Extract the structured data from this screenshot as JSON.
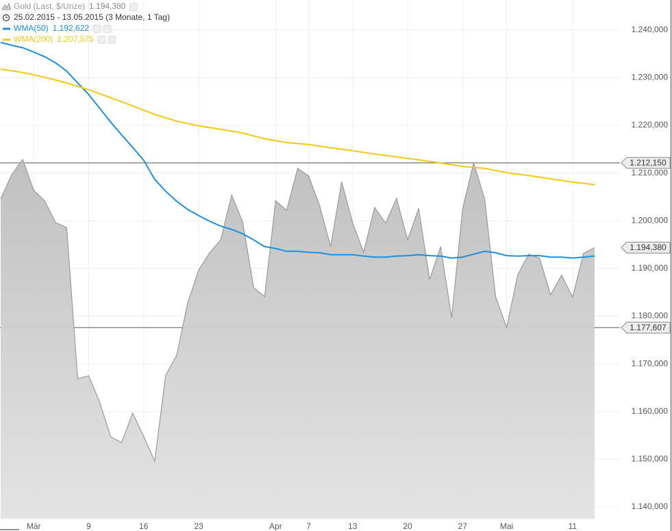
{
  "chart_data": {
    "type": "line",
    "subtitle": "25.02.2015 - 13.05.2015 (3 Monate, 1 Tag)",
    "categories": [
      null,
      null,
      null,
      "Mär",
      null,
      null,
      null,
      null,
      "9",
      null,
      null,
      null,
      null,
      "16",
      null,
      null,
      null,
      null,
      "23",
      null,
      null,
      null,
      null,
      null,
      null,
      "Apr",
      null,
      null,
      "7",
      null,
      null,
      null,
      "13",
      null,
      null,
      null,
      null,
      "20",
      null,
      null,
      null,
      null,
      "27",
      null,
      null,
      null,
      "Mai",
      null,
      null,
      null,
      null,
      null,
      "11",
      null,
      null
    ],
    "series": [
      {
        "name": "Gold (Last, $/Unze)",
        "type": "area",
        "color": "#9a9a9a",
        "values": [
          1204600,
          1209700,
          1212850,
          1206400,
          1204200,
          1199600,
          1198600,
          1166900,
          1167500,
          1162000,
          1154700,
          1153500,
          1159700,
          1154800,
          1149600,
          1167600,
          1171800,
          1182700,
          1189700,
          1193300,
          1196000,
          1205400,
          1199800,
          1186000,
          1184100,
          1204200,
          1202200,
          1211000,
          1209400,
          1203200,
          1194600,
          1208200,
          1199600,
          1193400,
          1202800,
          1199500,
          1204700,
          1196000,
          1202600,
          1187700,
          1194600,
          1179700,
          1202500,
          1212150,
          1204700,
          1184100,
          1177607,
          1188600,
          1193000,
          1192200,
          1184500,
          1188600,
          1184000,
          1193200,
          1194380
        ],
        "value_labels": [
          null,
          null,
          null,
          null,
          null,
          null,
          null,
          null,
          null,
          null,
          null,
          null,
          null,
          null,
          null,
          null,
          null,
          null,
          null,
          null,
          null,
          null,
          null,
          null,
          null,
          null,
          null,
          null,
          null,
          null,
          null,
          null,
          null,
          null,
          null,
          null,
          null,
          null,
          null,
          null,
          null,
          null,
          null,
          null,
          null,
          null,
          null,
          null,
          null,
          null,
          null,
          null,
          null,
          null,
          "1.194,380"
        ]
      },
      {
        "name": "WMA(50)",
        "type": "line",
        "color": "#1b8fe0",
        "values": [
          1237400,
          1236800,
          1236300,
          1235400,
          1234400,
          1233100,
          1231400,
          1228900,
          1226500,
          1223600,
          1220700,
          1218000,
          1215400,
          1212700,
          1208700,
          1206200,
          1204100,
          1202400,
          1201100,
          1199900,
          1198900,
          1198200,
          1197300,
          1196000,
          1194600,
          1194200,
          1193600,
          1193600,
          1193400,
          1193300,
          1192900,
          1192900,
          1192900,
          1192600,
          1192400,
          1192400,
          1192600,
          1192700,
          1192900,
          1192700,
          1192600,
          1192200,
          1192400,
          1193000,
          1193600,
          1193300,
          1192700,
          1192600,
          1192700,
          1192700,
          1192400,
          1192400,
          1192200,
          1192400,
          1192622
        ],
        "value_labels": [
          null,
          null,
          null,
          null,
          null,
          null,
          null,
          null,
          null,
          null,
          null,
          null,
          null,
          null,
          null,
          null,
          null,
          null,
          null,
          null,
          null,
          null,
          null,
          null,
          null,
          null,
          null,
          null,
          null,
          null,
          null,
          null,
          null,
          null,
          null,
          null,
          null,
          null,
          null,
          null,
          null,
          null,
          null,
          null,
          null,
          null,
          null,
          null,
          null,
          null,
          null,
          null,
          null,
          null,
          "1.192,622"
        ]
      },
      {
        "name": "WMA(200)",
        "type": "line",
        "color": "#f2c811",
        "values": [
          1231800,
          1231450,
          1231100,
          1230600,
          1230100,
          1229500,
          1228900,
          1228200,
          1227500,
          1226650,
          1225800,
          1224950,
          1224100,
          1223200,
          1222300,
          1221600,
          1220900,
          1220400,
          1219900,
          1219550,
          1219200,
          1218800,
          1218400,
          1217800,
          1217200,
          1216800,
          1216400,
          1216200,
          1216000,
          1215650,
          1215300,
          1215000,
          1214700,
          1214350,
          1214000,
          1213700,
          1213400,
          1213100,
          1212800,
          1212450,
          1212100,
          1211750,
          1211400,
          1211200,
          1211000,
          1210550,
          1210100,
          1209800,
          1209500,
          1209150,
          1208800,
          1208450,
          1208100,
          1207850,
          1207575
        ],
        "value_labels": [
          null,
          null,
          null,
          null,
          null,
          null,
          null,
          null,
          null,
          null,
          null,
          null,
          null,
          null,
          null,
          null,
          null,
          null,
          null,
          null,
          null,
          null,
          null,
          null,
          null,
          null,
          null,
          null,
          null,
          null,
          null,
          null,
          null,
          null,
          null,
          null,
          null,
          null,
          null,
          null,
          null,
          null,
          null,
          null,
          null,
          null,
          null,
          null,
          null,
          null,
          null,
          null,
          null,
          null,
          "1.207,575"
        ]
      }
    ],
    "reference_lines": [
      {
        "value": 1212150,
        "label": "1.212,150"
      },
      {
        "value": 1177607,
        "label": "1.177,607"
      }
    ],
    "ylim": [
      1137500,
      1246300
    ],
    "yticks": [
      {
        "value": 1140000,
        "label": "1.140,000"
      },
      {
        "value": 1150000,
        "label": "1.150,000"
      },
      {
        "value": 1160000,
        "label": "1.160,000"
      },
      {
        "value": 1170000,
        "label": "1.170,000"
      },
      {
        "value": 1180000,
        "label": "1.180,000"
      },
      {
        "value": 1190000,
        "label": "1.190,000"
      },
      {
        "value": 1200000,
        "label": "1.200,000"
      },
      {
        "value": 1210000,
        "label": "1.210,000"
      },
      {
        "value": 1220000,
        "label": "1.220,000"
      },
      {
        "value": 1230000,
        "label": "1.230,000"
      },
      {
        "value": 1240000,
        "label": "1.240,000"
      }
    ],
    "grid": true
  }
}
